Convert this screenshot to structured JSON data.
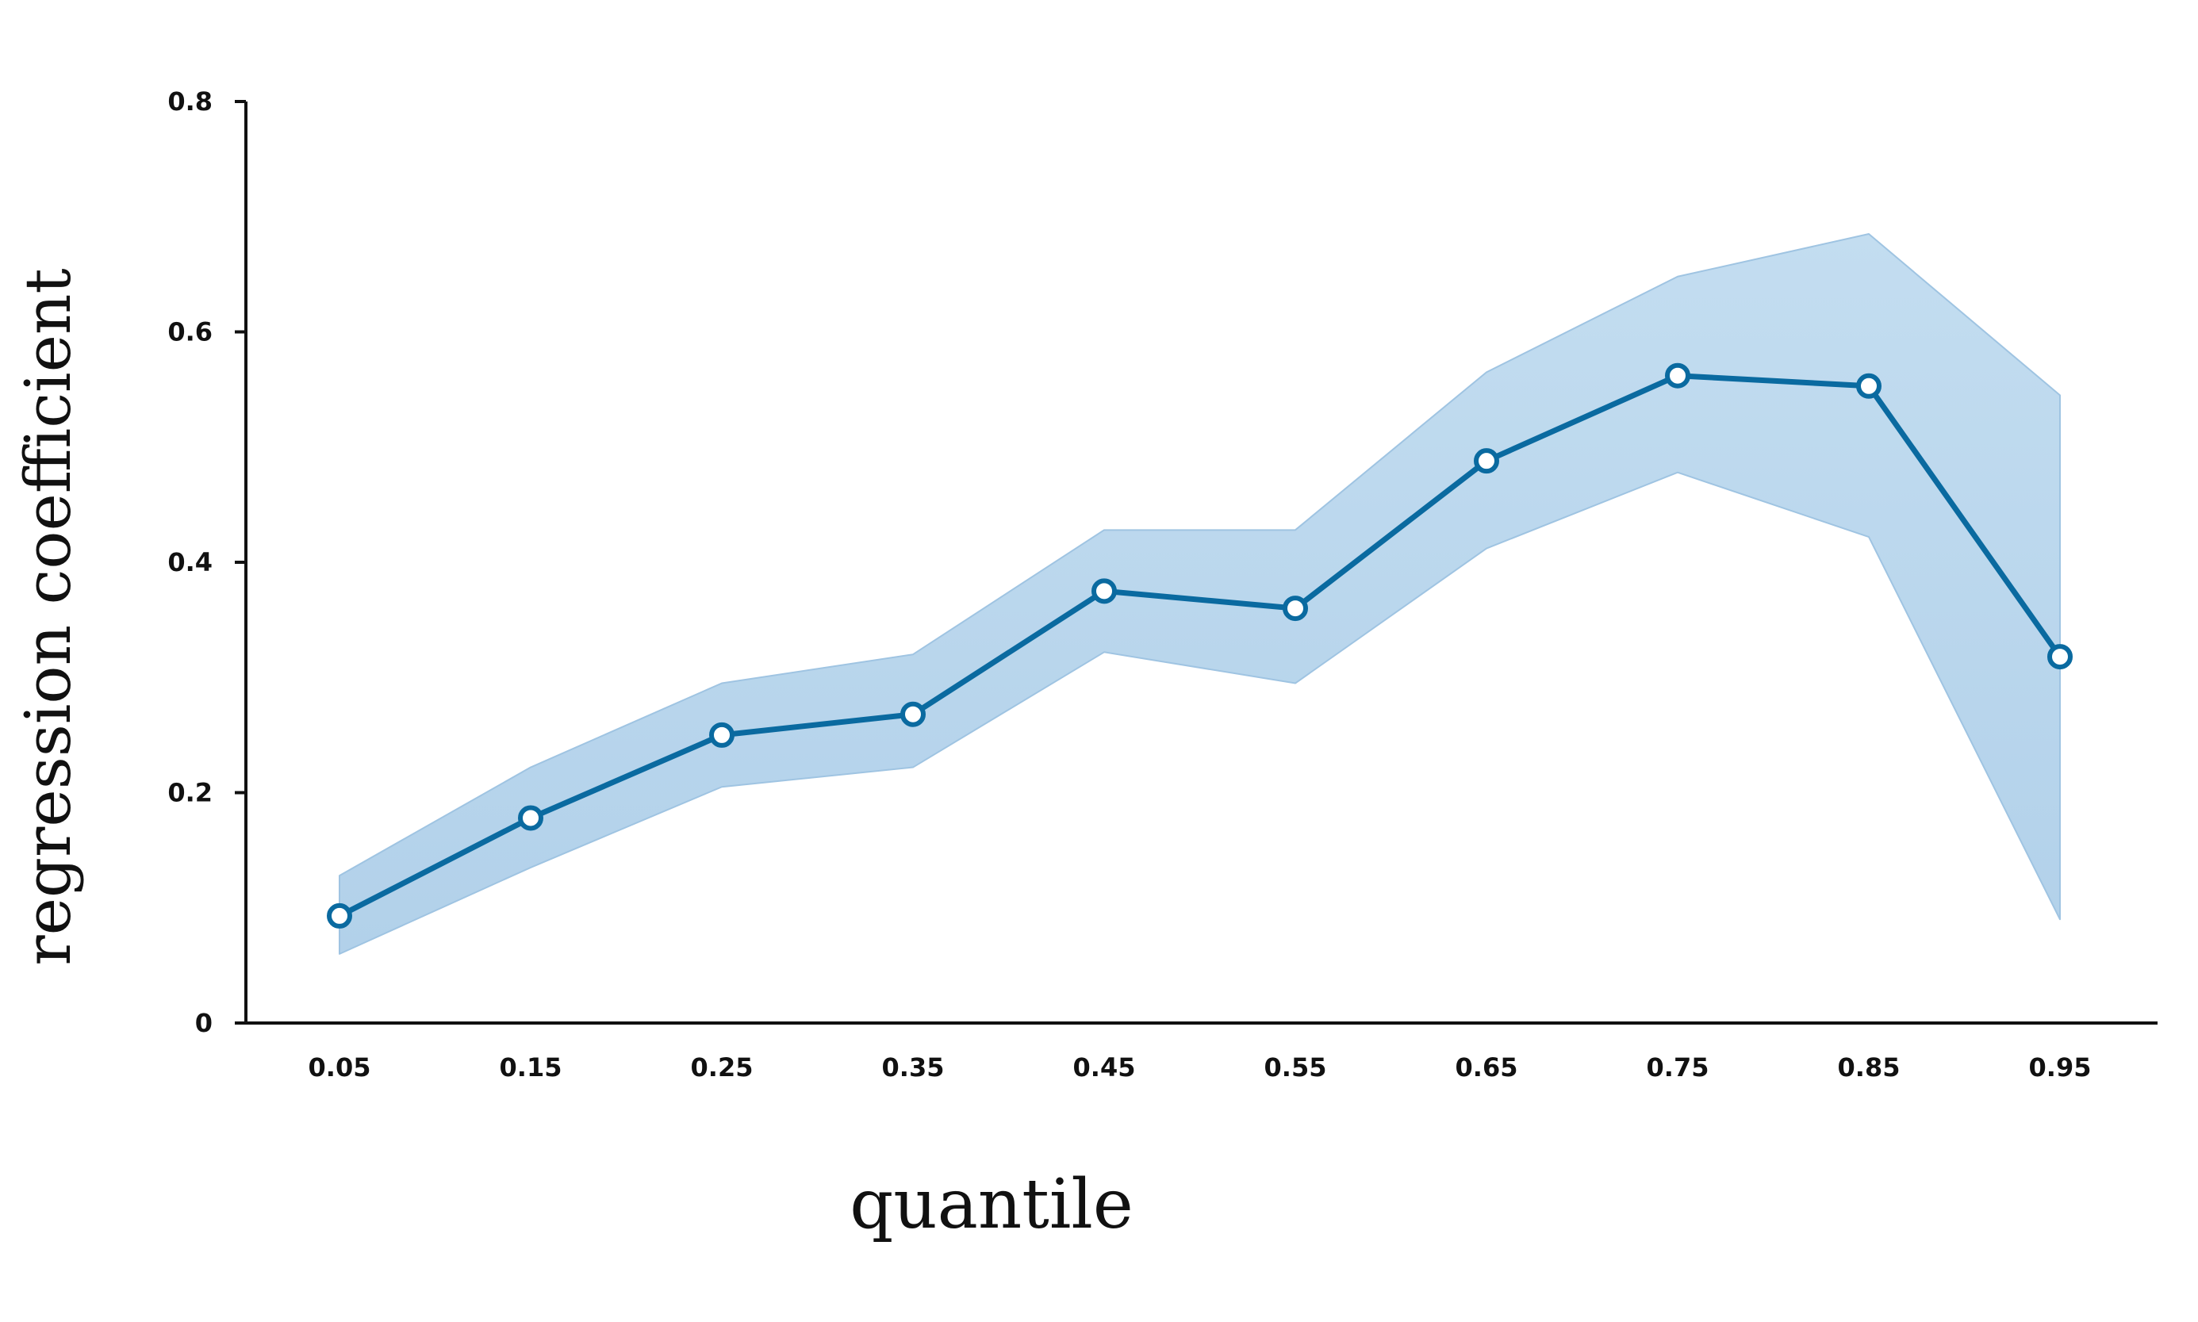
{
  "chart_data": {
    "type": "line",
    "title": "",
    "xlabel": "quantile",
    "ylabel": "regression coefficient",
    "categories": [
      "0.05",
      "0.15",
      "0.25",
      "0.35",
      "0.45",
      "0.55",
      "0.65",
      "0.75",
      "0.85",
      "0.95"
    ],
    "series": [
      {
        "values": [
          0.093,
          0.178,
          0.25,
          0.268,
          0.375,
          0.36,
          0.488,
          0.562,
          0.553,
          0.318
        ],
        "lower": [
          0.06,
          0.135,
          0.205,
          0.222,
          0.322,
          0.295,
          0.412,
          0.478,
          0.422,
          0.09
        ],
        "upper": [
          0.128,
          0.222,
          0.295,
          0.32,
          0.428,
          0.428,
          0.565,
          0.648,
          0.685,
          0.545
        ]
      }
    ],
    "ylim": [
      0,
      0.8
    ],
    "yticks": [
      "0",
      "0.2",
      "0.4",
      "0.6",
      "0.8"
    ],
    "grid": false,
    "colors": {
      "line": "#0a6aa0",
      "band": "#bcd8ee",
      "band_edge": "#9fc4e2",
      "marker_fill": "#ffffff",
      "axis": "#111111"
    }
  }
}
